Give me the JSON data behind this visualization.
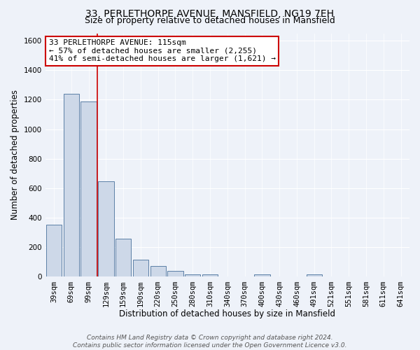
{
  "title": "33, PERLETHORPE AVENUE, MANSFIELD, NG19 7EH",
  "subtitle": "Size of property relative to detached houses in Mansfield",
  "xlabel": "Distribution of detached houses by size in Mansfield",
  "ylabel": "Number of detached properties",
  "bar_color": "#cdd8e8",
  "bar_edge_color": "#5b7fa6",
  "background_color": "#eef2f9",
  "grid_color": "#ffffff",
  "categories": [
    "39sqm",
    "69sqm",
    "99sqm",
    "129sqm",
    "159sqm",
    "190sqm",
    "220sqm",
    "250sqm",
    "280sqm",
    "310sqm",
    "340sqm",
    "370sqm",
    "400sqm",
    "430sqm",
    "460sqm",
    "491sqm",
    "521sqm",
    "551sqm",
    "581sqm",
    "611sqm",
    "641sqm"
  ],
  "values": [
    355,
    1240,
    1190,
    645,
    260,
    115,
    73,
    38,
    18,
    17,
    0,
    0,
    17,
    0,
    0,
    17,
    0,
    0,
    0,
    0,
    0
  ],
  "ylim": [
    0,
    1650
  ],
  "yticks": [
    0,
    200,
    400,
    600,
    800,
    1000,
    1200,
    1400,
    1600
  ],
  "vline_x": 2.5,
  "vline_color": "#cc0000",
  "annotation_line1": "33 PERLETHORPE AVENUE: 115sqm",
  "annotation_line2": "← 57% of detached houses are smaller (2,255)",
  "annotation_line3": "41% of semi-detached houses are larger (1,621) →",
  "annotation_box_color": "#ffffff",
  "annotation_box_edge": "#cc0000",
  "footer_line1": "Contains HM Land Registry data © Crown copyright and database right 2024.",
  "footer_line2": "Contains public sector information licensed under the Open Government Licence v3.0.",
  "title_fontsize": 10,
  "subtitle_fontsize": 9,
  "xlabel_fontsize": 8.5,
  "ylabel_fontsize": 8.5,
  "tick_fontsize": 7.5,
  "annotation_fontsize": 8,
  "footer_fontsize": 6.5
}
